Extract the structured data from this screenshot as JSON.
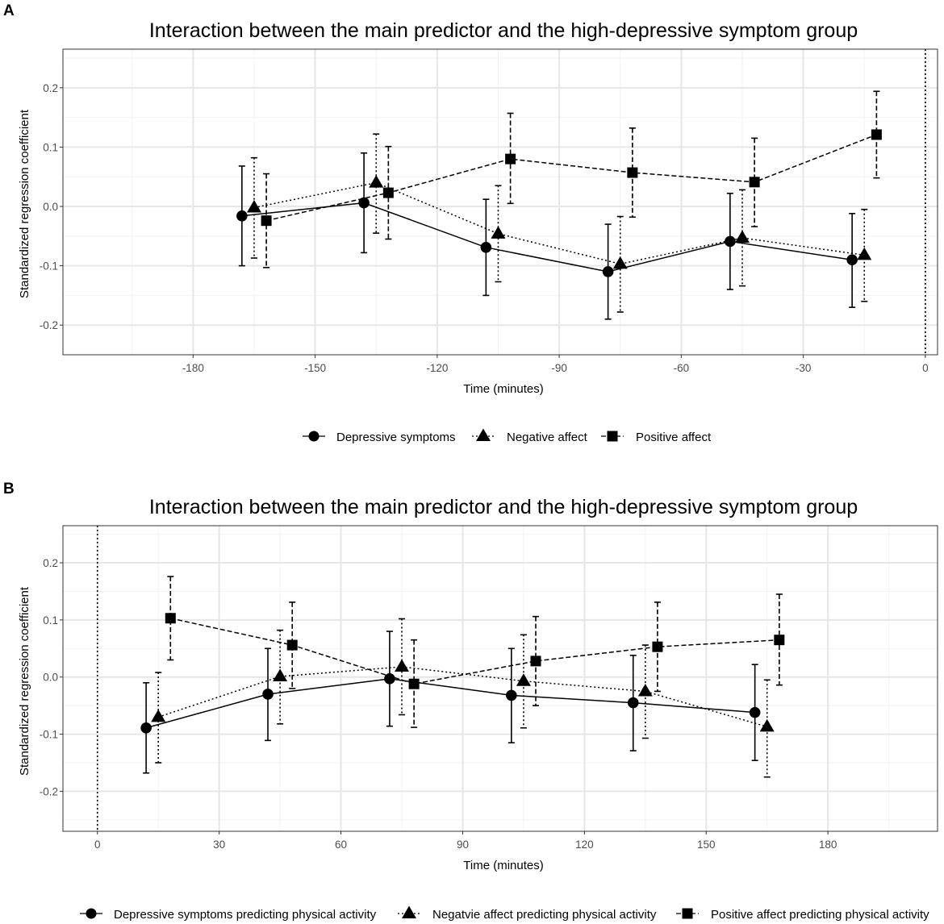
{
  "chart_data": [
    {
      "panel": "A",
      "type": "line",
      "title": "Interaction between the main predictor and the high-depressive symptom group",
      "xlabel": "Time (minutes)",
      "ylabel": "Standardized regression coefficient",
      "xlim": [
        -212,
        3
      ],
      "ylim": [
        -0.25,
        0.265
      ],
      "xticks": [
        -180,
        -150,
        -120,
        -90,
        -60,
        -30,
        0
      ],
      "xtick_labels": [
        "-180",
        "-150",
        "-120",
        "-90",
        "-60",
        "-30",
        "0"
      ],
      "yticks": [
        -0.2,
        -0.1,
        0.0,
        0.1,
        0.2
      ],
      "ytick_labels": [
        "-0.2",
        "-0.1",
        "0.0",
        "0.1",
        "0.2"
      ],
      "vline": 0,
      "series": [
        {
          "name": "Depressive symptoms",
          "shape": "circle",
          "dash": "solid",
          "x": [
            -168,
            -138,
            -108,
            -78,
            -48,
            -18
          ],
          "y": [
            -0.016,
            0.006,
            -0.069,
            -0.11,
            -0.059,
            -0.09
          ],
          "lo": [
            -0.1,
            -0.078,
            -0.15,
            -0.19,
            -0.14,
            -0.17
          ],
          "hi": [
            0.068,
            0.09,
            0.012,
            -0.03,
            0.022,
            -0.012
          ]
        },
        {
          "name": "Negative affect",
          "shape": "triangle",
          "dash": "dotted",
          "x": [
            -165,
            -135,
            -105,
            -75,
            -45,
            -15
          ],
          "y": [
            -0.002,
            0.04,
            -0.046,
            -0.097,
            -0.053,
            -0.082
          ],
          "lo": [
            -0.087,
            -0.045,
            -0.127,
            -0.178,
            -0.134,
            -0.16
          ],
          "hi": [
            0.082,
            0.122,
            0.035,
            -0.017,
            0.028,
            -0.005
          ]
        },
        {
          "name": "Positive affect",
          "shape": "square",
          "dash": "dashed",
          "x": [
            -162,
            -132,
            -102,
            -72,
            -42,
            -12
          ],
          "y": [
            -0.024,
            0.023,
            0.08,
            0.057,
            0.041,
            0.121
          ],
          "lo": [
            -0.103,
            -0.055,
            0.005,
            -0.018,
            -0.034,
            0.048
          ],
          "hi": [
            0.055,
            0.101,
            0.157,
            0.132,
            0.115,
            0.194
          ]
        }
      ],
      "legend": [
        "Depressive symptoms",
        "Negative affect",
        "Positive affect"
      ],
      "legend_position": "bottom"
    },
    {
      "panel": "B",
      "type": "line",
      "title": "Interaction between the main predictor and the high-depressive symptom group",
      "xlabel": "Time (minutes)",
      "ylabel": "Standardized regression coefficient",
      "xlim": [
        -8.5,
        207
      ],
      "ylim": [
        -0.27,
        0.265
      ],
      "xticks": [
        0,
        30,
        60,
        90,
        120,
        150,
        180
      ],
      "xtick_labels": [
        "0",
        "30",
        "60",
        "90",
        "120",
        "150",
        "180"
      ],
      "yticks": [
        -0.2,
        -0.1,
        0.0,
        0.1,
        0.2
      ],
      "ytick_labels": [
        "-0.2",
        "-0.1",
        "0.0",
        "0.1",
        "0.2"
      ],
      "vline": 0,
      "series": [
        {
          "name": "Depressive symptoms predicting physical activity",
          "shape": "circle",
          "dash": "solid",
          "x": [
            12,
            42,
            72,
            102,
            132,
            162
          ],
          "y": [
            -0.089,
            -0.03,
            -0.003,
            -0.032,
            -0.045,
            -0.062
          ],
          "lo": [
            -0.168,
            -0.111,
            -0.086,
            -0.115,
            -0.129,
            -0.146
          ],
          "hi": [
            -0.01,
            0.05,
            0.08,
            0.05,
            0.038,
            0.022
          ]
        },
        {
          "name": "Negatvie affect predicting physical activity",
          "shape": "triangle",
          "dash": "dotted",
          "x": [
            15,
            45,
            75,
            105,
            135,
            165
          ],
          "y": [
            -0.07,
            0.001,
            0.018,
            -0.007,
            -0.025,
            -0.087
          ],
          "lo": [
            -0.15,
            -0.082,
            -0.066,
            -0.089,
            -0.107,
            -0.175
          ],
          "hi": [
            0.008,
            0.082,
            0.102,
            0.074,
            0.056,
            -0.005
          ]
        },
        {
          "name": "Positive affect predicting physical activity",
          "shape": "square",
          "dash": "dashed",
          "x": [
            18,
            48,
            78,
            108,
            138,
            168
          ],
          "y": [
            0.103,
            0.056,
            -0.012,
            0.028,
            0.053,
            0.065
          ],
          "lo": [
            0.03,
            -0.02,
            -0.088,
            -0.05,
            -0.025,
            -0.014
          ],
          "hi": [
            0.176,
            0.131,
            0.065,
            0.106,
            0.131,
            0.145
          ]
        }
      ],
      "legend": [
        "Depressive symptoms predicting physical activity",
        "Negatvie affect predicting physical activity",
        "Positive affect predicting physical activity"
      ],
      "legend_position": "bottom"
    }
  ]
}
